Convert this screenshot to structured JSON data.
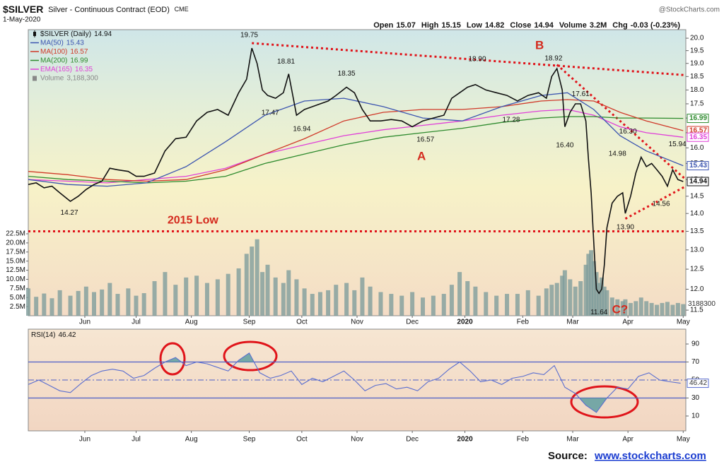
{
  "header": {
    "symbol": "$SILVER",
    "name": "Silver - Continuous Contract (EOD)",
    "exchange": "CME",
    "date": "1-May-2020",
    "credit": "@StockCharts.com",
    "quote": [
      {
        "label": "Open",
        "value": "15.07"
      },
      {
        "label": "High",
        "value": "15.15"
      },
      {
        "label": "Low",
        "value": "14.82"
      },
      {
        "label": "Close",
        "value": "14.94"
      },
      {
        "label": "Volume",
        "value": "3.2M"
      },
      {
        "label": "Chg",
        "value": "-0.03 (-0.23%)"
      }
    ]
  },
  "chart_data": [
    {
      "type": "line",
      "log_scale": true,
      "grid": false,
      "xlim": [
        0,
        250
      ],
      "ylim": [
        11.37,
        20.35
      ],
      "xticks": [
        {
          "value": 21.5,
          "label": "Jun"
        },
        {
          "value": 41,
          "label": "Jul"
        },
        {
          "value": 62,
          "label": "Aug"
        },
        {
          "value": 84,
          "label": "Sep"
        },
        {
          "value": 104,
          "label": "Oct"
        },
        {
          "value": 125,
          "label": "Nov"
        },
        {
          "value": 146,
          "label": "Dec"
        },
        {
          "value": 166,
          "label": "2020"
        },
        {
          "value": 188,
          "label": "Feb"
        },
        {
          "value": 207,
          "label": "Mar"
        },
        {
          "value": 228,
          "label": "Apr"
        },
        {
          "value": 249,
          "label": "May"
        }
      ],
      "yticks": [
        {
          "value": 11.5,
          "label": "11.5"
        },
        {
          "value": 12,
          "label": "12.0"
        },
        12.5,
        {
          "value": 13,
          "label": "13.0"
        },
        13.5,
        {
          "value": 14,
          "label": "14.0"
        },
        14.5,
        {
          "value": 15,
          "label": "15.0"
        },
        15.5,
        {
          "value": 16,
          "label": "16.0"
        },
        16.5,
        {
          "value": 17,
          "label": "17.0"
        },
        17.5,
        {
          "value": 18,
          "label": "18.0"
        },
        18.5,
        {
          "value": 19,
          "label": "19.0"
        },
        19.5,
        {
          "value": 20,
          "label": "20.0"
        }
      ],
      "x": [
        0,
        3,
        6,
        9,
        12,
        16,
        19,
        22,
        25,
        28,
        31,
        34,
        38,
        41,
        44,
        48,
        52,
        56,
        60,
        64,
        68,
        72,
        76,
        80,
        83,
        85,
        87,
        89,
        91,
        94,
        97,
        99,
        102,
        105,
        108,
        111,
        114,
        117,
        121,
        124,
        127,
        130,
        134,
        138,
        142,
        146,
        150,
        154,
        158,
        161,
        164,
        167,
        170,
        174,
        178,
        182,
        186,
        190,
        194,
        197,
        199,
        201,
        203,
        204,
        206,
        208,
        210,
        212,
        213,
        214,
        215,
        216,
        217,
        218,
        219,
        220,
        222,
        224,
        226,
        227,
        229,
        231,
        233,
        235,
        237,
        239,
        241,
        243,
        245,
        247,
        249
      ],
      "series": [
        {
          "name": "$SILVER (Daily)",
          "color": "#111111",
          "last": 14.94,
          "values": [
            14.85,
            14.9,
            14.75,
            14.8,
            14.6,
            14.35,
            14.5,
            14.7,
            14.85,
            14.95,
            15.35,
            15.3,
            15.25,
            15.1,
            15.1,
            15.2,
            15.9,
            16.3,
            16.35,
            16.9,
            17.2,
            17.3,
            17.1,
            17.9,
            18.4,
            19.6,
            19.0,
            18.0,
            17.8,
            17.7,
            17.9,
            18.6,
            17.1,
            17.3,
            17.4,
            17.5,
            17.6,
            17.8,
            18.1,
            17.9,
            17.3,
            16.9,
            16.9,
            16.95,
            16.9,
            16.7,
            16.9,
            17.0,
            17.1,
            17.7,
            17.9,
            18.1,
            18.2,
            18.0,
            17.9,
            17.8,
            17.6,
            17.8,
            17.9,
            17.7,
            18.5,
            18.8,
            18.0,
            16.7,
            17.2,
            17.5,
            17.5,
            16.9,
            15.6,
            14.6,
            13.2,
            12.0,
            11.9,
            12.0,
            12.6,
            13.6,
            14.3,
            14.5,
            14.6,
            14.0,
            14.5,
            15.2,
            15.7,
            15.4,
            15.5,
            15.3,
            15.1,
            14.8,
            15.3,
            15.0,
            14.94
          ]
        },
        {
          "name": "MA(50)",
          "color": "#3c55b0",
          "last": 15.43,
          "x": [
            0,
            15,
            30,
            45,
            60,
            75,
            90,
            105,
            120,
            135,
            150,
            165,
            180,
            195,
            205,
            215,
            225,
            235,
            249
          ],
          "values": [
            15.0,
            14.85,
            14.8,
            14.9,
            15.4,
            16.2,
            17.1,
            17.6,
            17.7,
            17.4,
            17.0,
            16.9,
            17.4,
            17.8,
            17.9,
            17.3,
            16.4,
            15.9,
            15.43
          ]
        },
        {
          "name": "MA(100)",
          "color": "#d03a2a",
          "last": 16.57,
          "x": [
            0,
            15,
            30,
            45,
            60,
            75,
            90,
            105,
            120,
            135,
            150,
            165,
            180,
            195,
            205,
            215,
            225,
            235,
            249
          ],
          "values": [
            15.25,
            15.15,
            15.0,
            14.95,
            15.0,
            15.3,
            15.8,
            16.3,
            16.9,
            17.2,
            17.3,
            17.3,
            17.4,
            17.6,
            17.65,
            17.6,
            17.2,
            16.9,
            16.57
          ]
        },
        {
          "name": "MA(200)",
          "color": "#2e8b2e",
          "last": 16.99,
          "x": [
            0,
            15,
            30,
            45,
            60,
            75,
            90,
            105,
            120,
            135,
            150,
            165,
            180,
            195,
            205,
            215,
            225,
            235,
            249
          ],
          "values": [
            15.1,
            15.0,
            14.95,
            14.9,
            14.95,
            15.1,
            15.5,
            15.8,
            16.1,
            16.35,
            16.5,
            16.65,
            16.85,
            17.0,
            17.05,
            17.05,
            17.0,
            17.0,
            16.99
          ]
        },
        {
          "name": "EMA(165)",
          "color": "#e040d8",
          "last": 16.35,
          "x": [
            0,
            15,
            30,
            45,
            60,
            75,
            90,
            105,
            120,
            135,
            150,
            165,
            180,
            195,
            205,
            215,
            225,
            235,
            249
          ],
          "values": [
            15.0,
            14.95,
            14.9,
            15.0,
            15.1,
            15.35,
            15.8,
            16.1,
            16.4,
            16.6,
            16.75,
            16.9,
            17.1,
            17.25,
            17.3,
            17.1,
            16.7,
            16.5,
            16.35
          ]
        }
      ],
      "volume": {
        "name": "Volume",
        "color": "#7f9e9c",
        "last": {
          "value": 3188300,
          "label": "3,188,300"
        },
        "ylim": [
          0,
          22500000
        ],
        "yticks": [
          {
            "value": 2500000,
            "label": "2.5M"
          },
          {
            "value": 5000000,
            "label": "5.0M"
          },
          {
            "value": 7500000,
            "label": "7.5M"
          },
          {
            "value": 10000000,
            "label": "10.0M"
          },
          {
            "value": 12500000,
            "label": "12.5M"
          },
          {
            "value": 15000000,
            "label": "15.0M"
          },
          {
            "value": 17500000,
            "label": "17.5M"
          },
          {
            "value": 20000000,
            "label": "20.0M"
          },
          {
            "value": 22500000,
            "label": "22.5M"
          }
        ],
        "values": [
          7500000,
          5200000,
          6100000,
          4800000,
          7000000,
          5500000,
          6800000,
          8000000,
          6500000,
          7200000,
          9000000,
          6000000,
          7500000,
          5500000,
          6200000,
          9500000,
          12000000,
          8500000,
          10500000,
          11000000,
          9000000,
          10000000,
          11500000,
          13000000,
          17000000,
          19000000,
          21000000,
          12000000,
          14000000,
          10500000,
          9000000,
          12500000,
          10000000,
          7500000,
          6000000,
          6500000,
          7000000,
          8500000,
          9000000,
          7000000,
          10500000,
          8000000,
          6500000,
          6000000,
          5500000,
          6500000,
          5000000,
          5500000,
          6000000,
          8500000,
          12000000,
          9500000,
          8000000,
          6500000,
          5500000,
          6000000,
          6000000,
          7000000,
          5500000,
          7500000,
          8500000,
          9000000,
          11000000,
          12500000,
          10000000,
          8000000,
          9500000,
          14000000,
          17000000,
          18000000,
          15000000,
          12000000,
          9000000,
          10500000,
          8000000,
          7000000,
          5000000,
          4500000,
          4000000,
          4500000,
          3500000,
          4000000,
          5000000,
          4000000,
          3500000,
          3000000,
          3500000,
          3800000,
          3000000,
          3500000,
          3188300
        ]
      },
      "trendlines": [
        {
          "from": [
            85,
            19.8
          ],
          "to": [
            250,
            18.55
          ]
        },
        {
          "from": [
            201,
            18.95
          ],
          "to": [
            250,
            15.0
          ]
        },
        {
          "from": [
            227,
            13.85
          ],
          "to": [
            250,
            14.8
          ]
        },
        {
          "from": [
            0,
            13.5
          ],
          "to": [
            250,
            13.5
          ]
        }
      ],
      "annotations": [
        {
          "text": "19.75",
          "x": 84,
          "y": 20.12
        },
        {
          "text": "18.81",
          "x": 98,
          "y": 19.07
        },
        {
          "text": "17.47",
          "x": 92,
          "y": 17.18
        },
        {
          "text": "16.94",
          "x": 104,
          "y": 16.62
        },
        {
          "text": "18.35",
          "x": 121,
          "y": 18.61
        },
        {
          "text": "16.57",
          "x": 151,
          "y": 16.26
        },
        {
          "text": "18.90",
          "x": 170.7,
          "y": 19.16
        },
        {
          "text": "18.92",
          "x": 199.7,
          "y": 19.19
        },
        {
          "text": "17.61",
          "x": 210,
          "y": 17.85
        },
        {
          "text": "17.28",
          "x": 183.6,
          "y": 16.93
        },
        {
          "text": "16.40",
          "x": 204,
          "y": 16.08
        },
        {
          "text": "16.30",
          "x": 228,
          "y": 16.54
        },
        {
          "text": "15.94",
          "x": 246.8,
          "y": 16.12
        },
        {
          "text": "14.98",
          "x": 224,
          "y": 15.8
        },
        {
          "text": "14.56",
          "x": 240.6,
          "y": 14.27
        },
        {
          "text": "13.90",
          "x": 227,
          "y": 13.61
        },
        {
          "text": "11.64",
          "x": 217,
          "y": 11.45
        },
        {
          "text": "14.27",
          "x": 15.6,
          "y": 14.02
        },
        {
          "text": "A",
          "x": 149.5,
          "y": 15.71,
          "color": "#d42a1e"
        },
        {
          "text": "B",
          "x": 194.4,
          "y": 19.69,
          "color": "#d42a1e"
        },
        {
          "text": "C?",
          "x": 225,
          "y": 11.5,
          "color": "#d42a1e"
        },
        {
          "text": "2015 Low",
          "x": 62.6,
          "y": 13.8,
          "color": "#d42a1e"
        }
      ]
    },
    {
      "type": "line",
      "title": "RSI(14)",
      "last": 46.42,
      "color": "#5a6ed0",
      "fill": "#5f9ea0",
      "xlim": [
        0,
        250
      ],
      "ylim": [
        -6.5,
        106.5
      ],
      "yticks": [
        10,
        30,
        50,
        70,
        90
      ],
      "levels": [
        70,
        30
      ],
      "midline": 50,
      "xticks": [
        {
          "value": 21.5,
          "label": "Jun"
        },
        {
          "value": 41,
          "label": "Jul"
        },
        {
          "value": 62,
          "label": "Aug"
        },
        {
          "value": 84,
          "label": "Sep"
        },
        {
          "value": 104,
          "label": "Oct"
        },
        {
          "value": 125,
          "label": "Nov"
        },
        {
          "value": 146,
          "label": "Dec"
        },
        {
          "value": 166,
          "label": "2020"
        },
        {
          "value": 188,
          "label": "Feb"
        },
        {
          "value": 207,
          "label": "Mar"
        },
        {
          "value": 228,
          "label": "Apr"
        },
        {
          "value": 249,
          "label": "May"
        }
      ],
      "x": [
        0,
        4,
        8,
        12,
        16,
        20,
        24,
        28,
        32,
        36,
        40,
        44,
        48,
        52,
        56,
        60,
        64,
        68,
        72,
        76,
        80,
        84,
        88,
        92,
        96,
        100,
        104,
        108,
        112,
        116,
        120,
        124,
        128,
        132,
        136,
        140,
        144,
        148,
        152,
        156,
        160,
        164,
        168,
        172,
        176,
        180,
        184,
        188,
        192,
        196,
        200,
        204,
        208,
        212,
        216,
        220,
        224,
        228,
        232,
        236,
        240,
        244,
        248
      ],
      "values": [
        45,
        50,
        44,
        38,
        36,
        46,
        55,
        60,
        62,
        60,
        52,
        55,
        63,
        70,
        75,
        66,
        70,
        68,
        64,
        60,
        72,
        80,
        58,
        52,
        55,
        60,
        45,
        52,
        48,
        54,
        60,
        50,
        38,
        44,
        46,
        40,
        42,
        38,
        48,
        52,
        62,
        70,
        60,
        48,
        50,
        45,
        52,
        54,
        58,
        56,
        66,
        42,
        35,
        22,
        14,
        30,
        42,
        40,
        54,
        58,
        50,
        48,
        46.42
      ]
    }
  ],
  "source": {
    "label": "Source:",
    "link": "www.stockcharts.com"
  }
}
